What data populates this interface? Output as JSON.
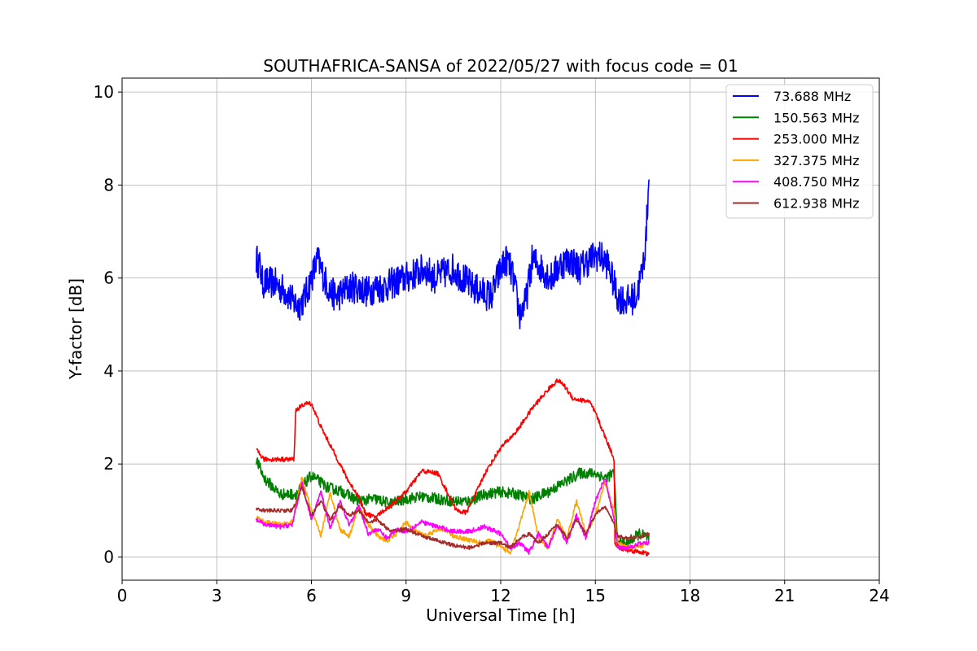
{
  "chart_data": {
    "type": "line",
    "title": "SOUTHAFRICA-SANSA of 2022/05/27 with focus code = 01",
    "xlabel": "Universal Time [h]",
    "ylabel": "Y-factor [dB]",
    "xlim": [
      0,
      24
    ],
    "ylim": [
      -0.5,
      10.3
    ],
    "xticks": [
      0,
      3,
      6,
      9,
      12,
      15,
      18,
      21,
      24
    ],
    "yticks": [
      0,
      2,
      4,
      6,
      8,
      10
    ],
    "grid": true,
    "legend_position": "top-right",
    "series": [
      {
        "name": "73.688 MHz",
        "legend_label": "  73.688 MHz",
        "color": "#0000ff",
        "noise": 0.35,
        "x": [
          4.25,
          4.35,
          4.45,
          4.6,
          4.8,
          5.0,
          5.2,
          5.4,
          5.6,
          5.8,
          6.0,
          6.2,
          6.4,
          6.6,
          6.8,
          7.0,
          7.2,
          7.5,
          7.8,
          8.0,
          8.3,
          8.6,
          9.0,
          9.3,
          9.6,
          9.9,
          10.2,
          10.5,
          10.8,
          11.1,
          11.4,
          11.7,
          12.0,
          12.2,
          12.4,
          12.6,
          12.8,
          13.0,
          13.3,
          13.6,
          13.9,
          14.2,
          14.5,
          14.8,
          15.1,
          15.4,
          15.7,
          16.0,
          16.3,
          16.5,
          16.6,
          16.7
        ],
        "y": [
          6.4,
          6.3,
          5.9,
          5.9,
          5.9,
          5.8,
          5.7,
          5.5,
          5.4,
          5.6,
          6.0,
          6.4,
          6.0,
          5.7,
          5.6,
          5.7,
          5.8,
          5.8,
          5.7,
          5.8,
          5.8,
          5.9,
          6.0,
          6.1,
          6.2,
          6.0,
          6.1,
          6.2,
          6.0,
          5.8,
          5.7,
          5.6,
          6.2,
          6.4,
          6.0,
          5.2,
          5.5,
          6.4,
          6.2,
          6.0,
          6.3,
          6.4,
          6.2,
          6.4,
          6.5,
          6.3,
          5.6,
          5.5,
          5.6,
          6.2,
          6.8,
          8.2
        ]
      },
      {
        "name": "150.563 MHz",
        "legend_label": "150.563 MHz",
        "color": "#008000",
        "noise": 0.12,
        "x": [
          4.25,
          4.5,
          5.0,
          5.5,
          6.0,
          6.5,
          7.0,
          7.5,
          8.0,
          8.5,
          9.0,
          9.5,
          10.0,
          10.5,
          11.0,
          11.5,
          12.0,
          12.5,
          13.0,
          13.5,
          14.0,
          14.5,
          15.0,
          15.3,
          15.6,
          15.7,
          16.0,
          16.4,
          16.7
        ],
        "y": [
          2.1,
          1.7,
          1.35,
          1.35,
          1.75,
          1.5,
          1.4,
          1.2,
          1.25,
          1.15,
          1.25,
          1.3,
          1.25,
          1.2,
          1.2,
          1.35,
          1.4,
          1.35,
          1.25,
          1.4,
          1.6,
          1.8,
          1.8,
          1.7,
          1.8,
          0.3,
          0.3,
          0.5,
          0.4
        ]
      },
      {
        "name": "253.000 MHz",
        "legend_label": "253.000 MHz",
        "color": "#ff0000",
        "noise": 0.05,
        "x": [
          4.25,
          4.5,
          5.0,
          5.45,
          5.5,
          5.8,
          6.0,
          6.3,
          6.6,
          6.9,
          7.2,
          7.5,
          7.7,
          8.0,
          8.5,
          9.0,
          9.5,
          10.0,
          10.3,
          10.6,
          10.9,
          11.2,
          11.5,
          12.0,
          12.5,
          13.0,
          13.5,
          13.8,
          14.0,
          14.3,
          14.8,
          15.0,
          15.3,
          15.6,
          15.62,
          15.7,
          16.0,
          16.5,
          16.7
        ],
        "y": [
          2.3,
          2.1,
          2.1,
          2.1,
          3.15,
          3.3,
          3.3,
          2.8,
          2.4,
          2.0,
          1.6,
          1.3,
          0.95,
          0.85,
          1.1,
          1.4,
          1.85,
          1.8,
          1.4,
          1.0,
          0.95,
          1.35,
          1.8,
          2.35,
          2.7,
          3.2,
          3.6,
          3.8,
          3.7,
          3.4,
          3.35,
          3.1,
          2.6,
          2.1,
          0.3,
          0.2,
          0.15,
          0.1,
          0.05
        ]
      },
      {
        "name": "327.375 MHz",
        "legend_label": "327.375 MHz",
        "color": "#ffa500",
        "noise": 0.05,
        "x": [
          4.25,
          4.5,
          5.0,
          5.4,
          5.7,
          6.0,
          6.3,
          6.6,
          6.9,
          7.2,
          7.5,
          7.8,
          8.1,
          8.4,
          8.7,
          9.0,
          9.3,
          9.6,
          9.9,
          10.2,
          10.5,
          10.8,
          11.1,
          11.4,
          11.7,
          12.0,
          12.3,
          12.6,
          12.9,
          13.2,
          13.5,
          13.8,
          14.1,
          14.4,
          14.7,
          15.0,
          15.3,
          15.6,
          15.7,
          16.0,
          16.5,
          16.7
        ],
        "y": [
          0.85,
          0.75,
          0.7,
          0.75,
          1.7,
          1.0,
          0.45,
          1.4,
          0.6,
          0.45,
          1.1,
          0.7,
          0.45,
          0.35,
          0.5,
          0.75,
          0.55,
          0.45,
          0.55,
          0.6,
          0.45,
          0.4,
          0.35,
          0.3,
          0.35,
          0.2,
          0.1,
          0.7,
          1.4,
          0.4,
          0.2,
          0.8,
          0.4,
          1.2,
          0.5,
          0.9,
          1.6,
          1.0,
          0.3,
          0.2,
          0.25,
          0.3
        ]
      },
      {
        "name": "408.750 MHz",
        "legend_label": "408.750 MHz",
        "color": "#ff00ff",
        "noise": 0.05,
        "x": [
          4.25,
          4.5,
          5.0,
          5.4,
          5.7,
          6.0,
          6.3,
          6.6,
          6.9,
          7.2,
          7.5,
          7.8,
          8.1,
          8.4,
          8.7,
          9.0,
          9.5,
          10.0,
          10.5,
          11.0,
          11.5,
          12.0,
          12.3,
          12.6,
          12.9,
          13.2,
          13.5,
          13.8,
          14.1,
          14.4,
          14.7,
          15.0,
          15.3,
          15.6,
          15.7,
          16.0,
          16.5,
          16.7
        ],
        "y": [
          0.8,
          0.7,
          0.65,
          0.7,
          1.6,
          0.8,
          1.4,
          0.6,
          1.2,
          0.7,
          1.1,
          0.5,
          0.6,
          0.4,
          0.6,
          0.55,
          0.75,
          0.65,
          0.55,
          0.55,
          0.65,
          0.5,
          0.2,
          0.3,
          0.1,
          0.5,
          0.2,
          0.7,
          0.3,
          0.9,
          0.4,
          1.2,
          1.7,
          0.8,
          0.2,
          0.2,
          0.3,
          0.3
        ]
      },
      {
        "name": "612.938 MHz",
        "legend_label": "612.938 MHz",
        "color": "#a52a2a",
        "noise": 0.04,
        "x": [
          4.25,
          4.5,
          5.0,
          5.4,
          5.7,
          6.0,
          6.3,
          6.6,
          6.9,
          7.2,
          7.5,
          7.8,
          8.1,
          8.5,
          9.0,
          9.5,
          10.0,
          10.5,
          11.0,
          11.5,
          12.0,
          12.3,
          12.6,
          12.9,
          13.2,
          13.5,
          13.8,
          14.1,
          14.4,
          14.7,
          15.0,
          15.3,
          15.6,
          15.7,
          16.0,
          16.5,
          16.7
        ],
        "y": [
          1.05,
          1.0,
          1.0,
          1.0,
          1.5,
          0.9,
          1.2,
          0.8,
          1.1,
          0.9,
          1.0,
          0.75,
          0.8,
          0.55,
          0.6,
          0.45,
          0.35,
          0.25,
          0.2,
          0.3,
          0.3,
          0.2,
          0.4,
          0.5,
          0.3,
          0.5,
          0.7,
          0.4,
          0.8,
          0.5,
          0.9,
          1.1,
          0.7,
          0.45,
          0.4,
          0.45,
          0.5
        ]
      }
    ]
  }
}
